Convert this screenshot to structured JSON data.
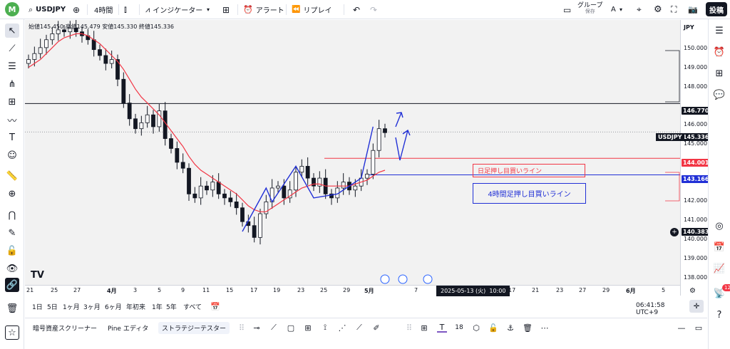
{
  "topbar": {
    "logo": "M",
    "symbol": "USDJPY",
    "interval": "4時間",
    "indicators": "インジケーター",
    "alert": "アラート",
    "replay": "リプレイ",
    "group_label": "グループ",
    "group_sub": "保存",
    "group_letter": "A",
    "post_button": "投稿"
  },
  "chart": {
    "ohlc": {
      "open_label": "始値",
      "open": "145.450",
      "high_label": "高値",
      "high": "145.479",
      "low_label": "安値",
      "low": "145.330",
      "close_label": "終値",
      "close": "145.336"
    },
    "currency": "JPY",
    "price_axis": [
      "150.000",
      "149.000",
      "148.000",
      "146.000",
      "145.000",
      "142.000",
      "141.000",
      "140.000",
      "139.000",
      "138.000"
    ],
    "price_tags": {
      "resistance": "146.770",
      "symbol_name": "USDJPY",
      "last": "145.336",
      "daily_line": "144.001",
      "h4_line": "143.166",
      "cursor": "140.383"
    },
    "time_axis": [
      "21",
      "25",
      "27",
      "4月",
      "3",
      "5",
      "9",
      "11",
      "15",
      "17",
      "19",
      "23",
      "25",
      "29",
      "5月",
      "7",
      "17",
      "21",
      "23",
      "27",
      "29",
      "6月",
      "5"
    ],
    "crosshair_time": "2025-05-13 (火)",
    "crosshair_hour": "10:00",
    "annotations": {
      "daily": "日足押し目買いライン",
      "h4": "4時間足押し目買いライン"
    },
    "colors": {
      "candle": "#131722",
      "ma": "#f23645",
      "drawing_blue": "#2130d6",
      "daily_line": "#f23645",
      "h4_line": "#2130d6"
    }
  },
  "chart_data": {
    "type": "line",
    "x": [
      0,
      1,
      2,
      3,
      4,
      5,
      6,
      7,
      8,
      9,
      10,
      11,
      12,
      13,
      14,
      15,
      16,
      17,
      18,
      19,
      20,
      21,
      22,
      23,
      24,
      25,
      26,
      27,
      28,
      29,
      30,
      31,
      32,
      33,
      34,
      35,
      36,
      37,
      38,
      39,
      40,
      41,
      42,
      43,
      44,
      45,
      46,
      47,
      48,
      49,
      50,
      51,
      52,
      53,
      54,
      55,
      56,
      57,
      58,
      59,
      60
    ],
    "series": [
      {
        "values": [
          149.0,
          149.3,
          149.6,
          150.0,
          150.3,
          150.5,
          150.4,
          150.6,
          150.4,
          150.2,
          150.0,
          149.5,
          149.2,
          148.8,
          149.0,
          148.0,
          146.8,
          146.0,
          145.5,
          145.8,
          146.2,
          145.6,
          146.4,
          145.0,
          144.5,
          143.8,
          143.5,
          142.2,
          142.0,
          142.6,
          142.4,
          142.8,
          142.2,
          142.0,
          141.8,
          141.5,
          140.8,
          140.6,
          140.0,
          141.2,
          141.8,
          142.5,
          142.6,
          142.0,
          142.4,
          143.3,
          143.6,
          143.0,
          142.6,
          143.0,
          142.2,
          142.0,
          142.5,
          142.8,
          142.4,
          142.6,
          143.0,
          143.2,
          144.4,
          145.5,
          145.3
        ]
      },
      {
        "values": [
          148.6,
          148.8,
          149.0,
          149.3,
          149.6,
          149.9,
          150.1,
          150.2,
          150.3,
          150.3,
          150.2,
          150.0,
          149.8,
          149.5,
          149.2,
          148.9,
          148.5,
          148.0,
          147.5,
          147.1,
          146.8,
          146.5,
          146.2,
          145.8,
          145.4,
          145.0,
          144.6,
          144.1,
          143.7,
          143.4,
          143.2,
          143.0,
          142.8,
          142.6,
          142.4,
          142.2,
          141.9,
          141.6,
          141.4,
          141.3,
          141.3,
          141.5,
          141.7,
          141.9,
          142.1,
          142.3,
          142.5,
          142.6,
          142.7,
          142.7,
          142.6,
          142.6,
          142.6,
          142.6,
          142.6,
          142.7,
          142.8,
          142.9,
          143.1,
          143.3,
          143.4
        ]
      }
    ],
    "ylim": [
      137.6,
      151.0
    ],
    "horizontal_lines": [
      146.77,
      145.336,
      144.001,
      143.166
    ]
  },
  "bottom": {
    "ranges": [
      "1日",
      "5日",
      "1ヶ月",
      "3ヶ月",
      "6ヶ月",
      "年初来",
      "1年",
      "5年",
      "すべて"
    ],
    "clock": "06:41:58 UTC+9",
    "tabs": [
      "暗号資産スクリーナー",
      "Pine エディタ",
      "ストラテジーテスター"
    ],
    "font_size": "18"
  },
  "rightbar": {
    "badge": "12"
  }
}
